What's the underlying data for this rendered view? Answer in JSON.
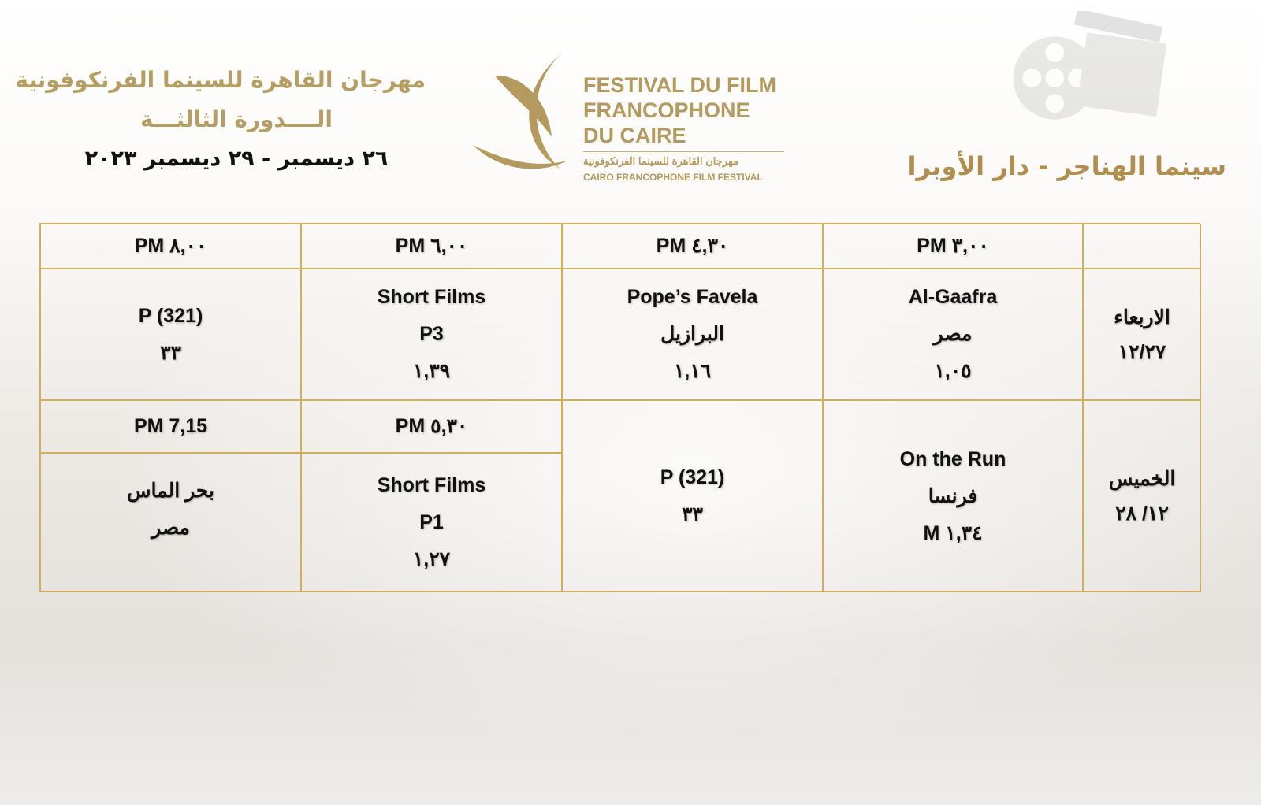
{
  "header": {
    "festival_ar": "مهرجان القاهرة للسينما الفرنكوفونية",
    "edition_ar": "الــــدورة الثالثـــة",
    "dates_ar": "٢٦ ديسمبر - ٢٩ ديسمبر ٢٠٢٣",
    "venue_ar": "سينما الهناجر - دار الأوبرا"
  },
  "logo": {
    "line1": "FESTIVAL DU FILM",
    "line2": "FRANCOPHONE",
    "line3": "DU CAIRE",
    "arabic": "مهرجان القاهرة للسينما الفرنكوفونية",
    "english": "CAIRO FRANCOPHONE FILM FESTIVAL"
  },
  "colors": {
    "gold": "#b59d63",
    "border": "#d3ae58",
    "text": "#111111"
  },
  "schedule": {
    "times": [
      "PM ٨,٠٠",
      "PM ٦,٠٠",
      "PM ٤,٣٠",
      "PM ٣,٠٠"
    ],
    "days": [
      {
        "name": "الاربعاء",
        "date": "١٢/٢٧",
        "slots": [
          {
            "lines": [
              "P (321)",
              "٣٣"
            ]
          },
          {
            "lines": [
              "Short Films",
              "P3",
              "١,٣٩"
            ]
          },
          {
            "lines": [
              "Pope’s Favela",
              "البرازيل",
              "١,١٦"
            ]
          },
          {
            "lines": [
              "Al-Gaafra",
              "مصر",
              "١,٠٥"
            ]
          }
        ]
      },
      {
        "name": "الخميس",
        "date": "١٢/ ٢٨",
        "time_overrides": [
          "PM 7,15",
          "PM ٥,٣٠"
        ],
        "slots": [
          {
            "lines": [
              "بحر الماس",
              "مصر"
            ]
          },
          {
            "lines": [
              "Short Films",
              "P1",
              "١,٢٧"
            ]
          },
          {
            "lines": [
              "P (321)",
              "٣٣"
            ]
          },
          {
            "lines": [
              "On the Run",
              "فرنسا",
              "M ١,٣٤"
            ]
          }
        ]
      }
    ]
  }
}
